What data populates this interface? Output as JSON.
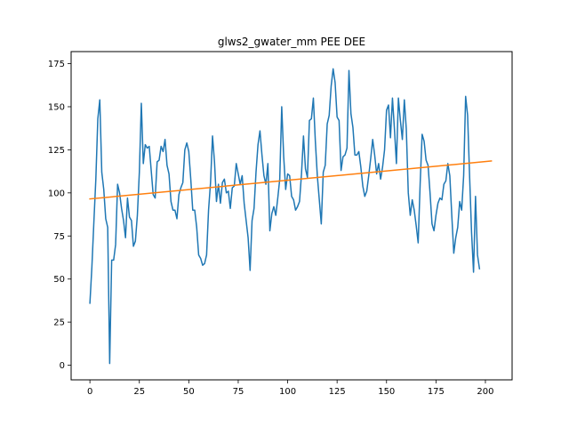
{
  "chart_data": {
    "type": "line",
    "title": "glws2_gwater_mm PEE DEE",
    "xlabel": "",
    "ylabel": "",
    "xlim": [
      -9.5,
      213.5
    ],
    "ylim": [
      -8.5,
      182
    ],
    "x_ticks": [
      0,
      25,
      50,
      75,
      100,
      125,
      150,
      175,
      200
    ],
    "y_ticks": [
      0,
      25,
      50,
      75,
      100,
      125,
      150,
      175
    ],
    "grid": false,
    "legend": "none",
    "series": [
      {
        "color": "#1f77b4",
        "x_start": 0,
        "x_step": 1,
        "values": [
          36,
          57,
          83,
          108,
          143,
          154,
          112,
          102,
          85,
          80,
          1,
          61,
          61,
          70,
          105,
          100,
          91,
          84,
          74,
          97,
          86,
          84,
          69,
          72,
          87,
          112,
          152,
          117,
          128,
          126,
          127,
          113,
          99,
          97,
          118,
          119,
          127,
          124,
          131,
          116,
          111,
          95,
          90,
          90,
          85,
          99,
          103,
          106,
          125,
          129,
          124,
          108,
          90,
          90,
          80,
          64,
          62,
          58,
          59,
          64,
          90,
          106,
          133,
          118,
          95,
          105,
          94,
          106,
          108,
          100,
          101,
          91,
          103,
          104,
          117,
          111,
          105,
          110,
          94,
          84,
          74,
          55,
          84,
          91,
          112,
          128,
          136,
          122,
          110,
          105,
          117,
          78,
          88,
          92,
          87,
          97,
          108,
          150,
          121,
          102,
          111,
          110,
          98,
          96,
          90,
          92,
          95,
          111,
          133,
          114,
          109,
          142,
          143,
          155,
          130,
          110,
          96,
          82,
          112,
          116,
          140,
          145,
          162,
          172,
          164,
          144,
          142,
          113,
          121,
          122,
          126,
          171,
          146,
          138,
          122,
          122,
          124,
          115,
          104,
          98,
          101,
          110,
          120,
          131,
          122,
          111,
          117,
          108,
          115,
          125,
          148,
          151,
          132,
          155,
          137,
          117,
          155,
          142,
          131,
          154,
          137,
          100,
          87,
          96,
          90,
          81,
          71,
          105,
          134,
          130,
          119,
          116,
          100,
          82,
          78,
          87,
          94,
          97,
          96,
          105,
          107,
          117,
          110,
          87,
          65,
          74,
          80,
          95,
          90,
          110,
          156,
          145,
          110,
          77,
          54,
          98,
          64,
          56
        ],
        "start_value": 36
      },
      {
        "color": "#ff7f0e",
        "x": [
          0,
          203
        ],
        "values": [
          96.5,
          118.5
        ]
      }
    ]
  }
}
